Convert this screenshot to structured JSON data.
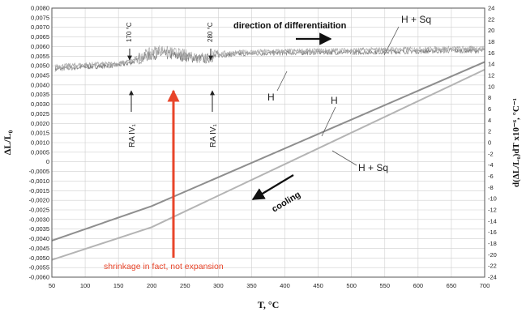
{
  "chart_data": {
    "type": "line",
    "xlabel": "T, °C",
    "ylabel": "ΔL/L₀",
    "y2label": "d(ΔL/L₀)dT x10⁻⁶, °C⁻¹",
    "xlim": [
      50,
      700
    ],
    "ylim": [
      -0.006,
      0.008
    ],
    "y2lim": [
      -24,
      24
    ],
    "grid": true,
    "xticks": [
      50,
      100,
      150,
      200,
      250,
      300,
      350,
      400,
      450,
      500,
      550,
      600,
      650,
      700
    ],
    "yticks": [
      "0,0080",
      "0,0075",
      "0,0070",
      "0,0065",
      "0,0060",
      "0,0055",
      "0,0050",
      "0,0045",
      "0,0040",
      "0,0035",
      "0,0030",
      "0,0025",
      "0,0020",
      "0,0015",
      "0,0010",
      "0,0005",
      "0",
      "-0,0005",
      "-0,0010",
      "-0,0015",
      "-0,0020",
      "-0,0025",
      "-0,0030",
      "-0,0035",
      "-0,0040",
      "-0,0045",
      "-0,0050",
      "-0,0055",
      "-0,0060"
    ],
    "y2ticks": [
      24,
      22,
      20,
      18,
      16,
      14,
      12,
      10,
      8,
      6,
      4,
      2,
      0,
      -2,
      -4,
      -6,
      -8,
      -10,
      -12,
      -14,
      -16,
      -18,
      -20,
      -22,
      -24
    ],
    "series": [
      {
        "name": "H",
        "axis": "left",
        "color": "#8e8e8e",
        "x": [
          50,
          200,
          700
        ],
        "y": [
          -0.0041,
          -0.0023,
          0.0052
        ]
      },
      {
        "name": "H + Sq",
        "axis": "left",
        "color": "#b4b4b4",
        "x": [
          50,
          200,
          700
        ],
        "y": [
          -0.0051,
          -0.0034,
          0.0048
        ]
      },
      {
        "axis": "right",
        "color": "#7a7a7a",
        "noisy": true,
        "x": [
          55,
          100,
          150,
          170,
          190,
          210,
          230,
          250,
          270,
          280,
          290,
          300,
          350,
          400,
          450,
          500,
          550,
          600,
          650,
          700
        ],
        "y": [
          13.1,
          13.5,
          13.8,
          14.3,
          15.3,
          15.8,
          15.6,
          15.3,
          15.0,
          14.9,
          15.2,
          15.6,
          15.9,
          16.0,
          16.1,
          16.1,
          16.2,
          16.3,
          16.4,
          16.4
        ]
      },
      {
        "axis": "right",
        "color": "#a6a6a6",
        "noisy": true,
        "x": [
          55,
          100,
          150,
          170,
          190,
          210,
          230,
          250,
          270,
          280,
          290,
          300,
          350,
          400,
          450,
          500,
          550,
          600,
          650,
          700
        ],
        "y": [
          13.6,
          13.9,
          14.1,
          14.6,
          15.8,
          16.6,
          16.2,
          15.8,
          15.4,
          15.2,
          15.5,
          15.9,
          16.2,
          16.3,
          16.4,
          16.5,
          16.6,
          16.7,
          16.8,
          16.8
        ]
      }
    ],
    "annotations": {
      "top_label": "direction of differentiaition",
      "label_170": "170 °C",
      "label_280": "280 °C",
      "ra_1": "RA IV₁",
      "ra_2": "RA IV₁",
      "h_upper": "H + Sq",
      "h_lower": "H",
      "line_h": "H",
      "line_hsq": "H + Sq",
      "cooling": "cooling",
      "shrinkage": "shrinkage in fact, not expansion"
    },
    "colors": {
      "red_arrow": "#e8452a",
      "grid": "#cfcfcf"
    }
  }
}
